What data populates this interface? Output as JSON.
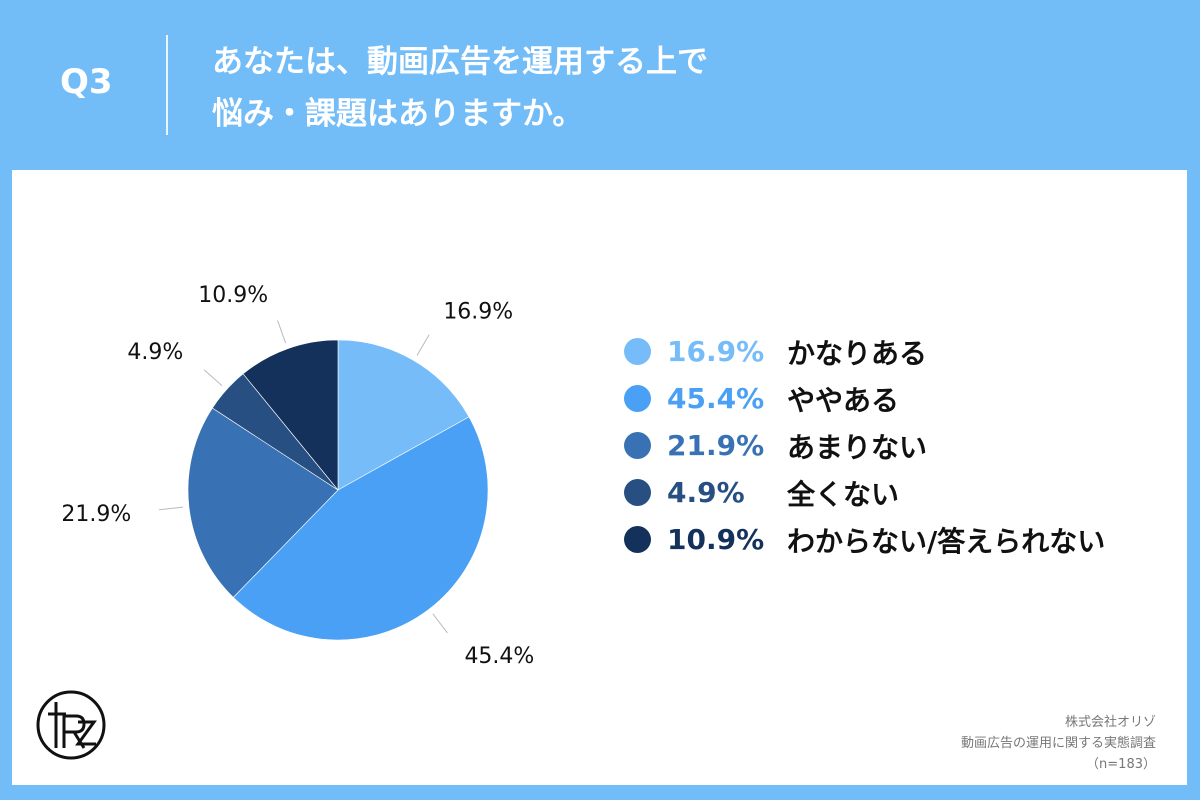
{
  "header": {
    "q_number": "Q3",
    "question_line1": "あなたは、動画広告を運用する上で",
    "question_line2": "悩み・課題はありますか。"
  },
  "chart_data": {
    "type": "pie",
    "series": [
      {
        "label": "かなりある",
        "value": 16.9,
        "display": "16.9%",
        "color": "#76bcf8"
      },
      {
        "label": "ややある",
        "value": 45.4,
        "display": "45.4%",
        "color": "#4aa0f4"
      },
      {
        "label": "あまりない",
        "value": 21.9,
        "display": "21.9%",
        "color": "#3872b4"
      },
      {
        "label": "全くない",
        "value": 4.9,
        "display": "4.9%",
        "color": "#274f82"
      },
      {
        "label": "わからない/答えられない",
        "value": 10.9,
        "display": "10.9%",
        "color": "#14315c"
      }
    ]
  },
  "credits": {
    "company": "株式会社オリゾ",
    "survey": "動画広告の運用に関する実態調査",
    "sample": "（n=183）"
  },
  "logo": {
    "icon": "orizo-logo-icon"
  }
}
